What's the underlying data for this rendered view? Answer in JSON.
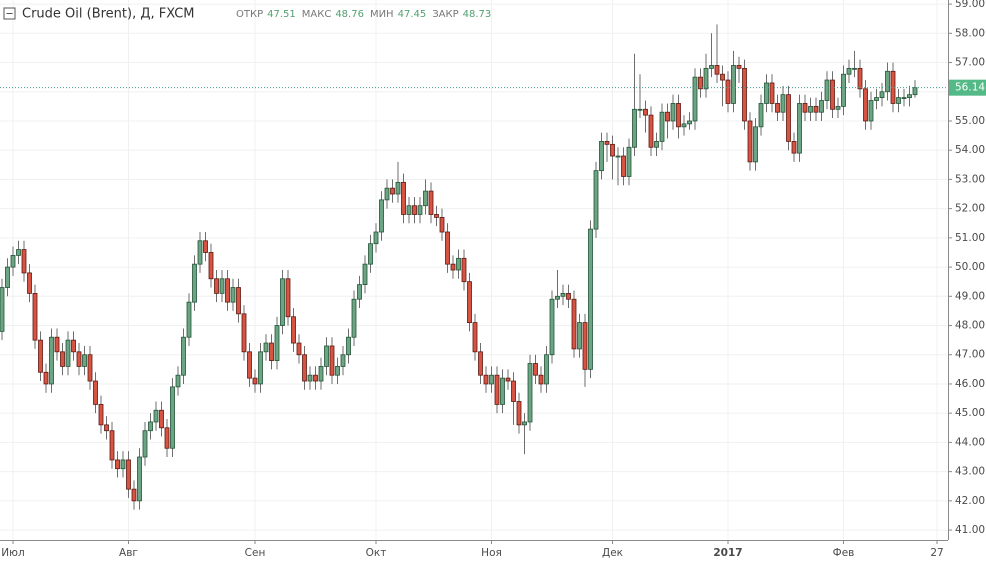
{
  "chart_data": {
    "type": "candlestick",
    "title": "Crude Oil (Brent), Д, FXCM",
    "legend": [
      {
        "label": "ОТКР",
        "value": 47.51
      },
      {
        "label": "МАКС",
        "value": 48.76
      },
      {
        "label": "МИН",
        "value": 47.45
      },
      {
        "label": "ЗАКР",
        "value": 48.73
      }
    ],
    "last_price": 56.14,
    "up_color": "#6ba583",
    "down_color": "#d75442",
    "grid": true,
    "ylim": [
      40.66,
      59.14
    ],
    "yticks": [
      {
        "value": 41,
        "label": "41.00"
      },
      {
        "value": 42,
        "label": "42.00"
      },
      {
        "value": 43,
        "label": "43.00"
      },
      {
        "value": 44,
        "label": "44.00"
      },
      {
        "value": 45,
        "label": "45.00"
      },
      {
        "value": 46,
        "label": "46.00"
      },
      {
        "value": 47,
        "label": "47.00"
      },
      {
        "value": 48,
        "label": "48.00"
      },
      {
        "value": 49,
        "label": "49.00"
      },
      {
        "value": 50,
        "label": "50.00"
      },
      {
        "value": 51,
        "label": "51.00"
      },
      {
        "value": 52,
        "label": "52.00"
      },
      {
        "value": 53,
        "label": "53.00"
      },
      {
        "value": 54,
        "label": "54.00"
      },
      {
        "value": 55,
        "label": "55.00"
      },
      {
        "value": 56,
        "label": "56.00"
      },
      {
        "value": 57,
        "label": "57.00"
      },
      {
        "value": 58,
        "label": "58.00"
      },
      {
        "value": 59,
        "label": "59.00"
      }
    ],
    "categories": [
      null,
      null,
      "Июл",
      null,
      null,
      null,
      null,
      null,
      null,
      null,
      null,
      null,
      null,
      null,
      null,
      null,
      null,
      null,
      null,
      null,
      null,
      null,
      null,
      "Авг",
      null,
      null,
      null,
      null,
      null,
      null,
      null,
      null,
      null,
      null,
      null,
      null,
      null,
      null,
      null,
      null,
      null,
      null,
      null,
      null,
      null,
      null,
      "Сен",
      null,
      null,
      null,
      null,
      null,
      null,
      null,
      null,
      null,
      null,
      null,
      null,
      null,
      null,
      null,
      null,
      null,
      null,
      null,
      null,
      null,
      "Окт",
      null,
      null,
      null,
      null,
      null,
      null,
      null,
      null,
      null,
      null,
      null,
      null,
      null,
      null,
      null,
      null,
      null,
      null,
      null,
      null,
      "Ноя",
      null,
      null,
      null,
      null,
      null,
      null,
      null,
      null,
      null,
      null,
      null,
      null,
      null,
      null,
      null,
      null,
      null,
      null,
      null,
      null,
      null,
      "Дек",
      null,
      null,
      null,
      null,
      null,
      null,
      null,
      null,
      null,
      null,
      null,
      null,
      null,
      null,
      null,
      null,
      null,
      null,
      null,
      null,
      "2017",
      null,
      null,
      null,
      null,
      null,
      null,
      null,
      null,
      null,
      null,
      null,
      null,
      null,
      null,
      null,
      null,
      null,
      null,
      null,
      null,
      "Фев",
      null,
      null,
      null,
      null,
      null,
      null,
      null,
      null,
      null,
      null,
      null,
      null,
      null,
      null,
      null,
      null,
      "27"
    ],
    "open": [
      47.8,
      49.3,
      50.0,
      50.4,
      50.6,
      49.8,
      49.1,
      47.5,
      46.4,
      46.0,
      47.6,
      47.1,
      46.6,
      47.5,
      47.1,
      46.6,
      47.0,
      46.1,
      45.3,
      44.6,
      44.4,
      43.4,
      43.1,
      43.4,
      42.4,
      42.0,
      43.5,
      44.4,
      44.7,
      45.1,
      44.5,
      43.8,
      45.9,
      46.3,
      47.6,
      48.8,
      50.1,
      50.9,
      50.5,
      49.6,
      49.1,
      49.6,
      48.8,
      49.3,
      48.4,
      47.1,
      46.2,
      46.0,
      47.1,
      47.4,
      46.8,
      48.0,
      49.6,
      48.3,
      47.4,
      47.0,
      46.1,
      46.3,
      46.1,
      46.6,
      47.3,
      46.3,
      46.6,
      47.0,
      47.6,
      48.9,
      49.4,
      50.1,
      50.8,
      51.2,
      52.3,
      52.7,
      52.5,
      52.9,
      51.8,
      52.1,
      51.8,
      52.1,
      52.6,
      51.8,
      51.7,
      51.2,
      50.1,
      49.9,
      50.3,
      49.5,
      48.1,
      47.1,
      46.3,
      46.0,
      46.3,
      45.3,
      46.2,
      46.1,
      45.4,
      44.6,
      44.7,
      46.7,
      46.3,
      46.0,
      47.0,
      48.9,
      49.0,
      49.1,
      48.9,
      47.2,
      48.1,
      46.5,
      51.3,
      53.3,
      54.3,
      54.2,
      53.8,
      53.8,
      53.1,
      54.1,
      55.4,
      55.4,
      55.2,
      54.1,
      54.3,
      55.3,
      55.0,
      55.6,
      54.8,
      54.9,
      55.0,
      56.5,
      56.1,
      56.8,
      56.9,
      56.6,
      56.4,
      55.6,
      56.9,
      56.8,
      55.0,
      53.6,
      54.8,
      55.6,
      56.3,
      55.6,
      55.3,
      55.9,
      54.3,
      53.9,
      55.6,
      55.3,
      55.5,
      55.3,
      55.7,
      56.4,
      55.4,
      55.5,
      56.6,
      56.8,
      56.8,
      56.1,
      55.0,
      55.7,
      55.8,
      56.0,
      56.7,
      55.6,
      55.8,
      55.8,
      55.9,
      null,
      null,
      null,
      null
    ],
    "high": [
      49.6,
      50.3,
      50.7,
      50.9,
      50.9,
      50.1,
      49.4,
      47.8,
      46.7,
      47.9,
      47.9,
      47.4,
      47.8,
      47.8,
      47.4,
      47.3,
      47.3,
      46.4,
      45.6,
      44.9,
      44.7,
      43.7,
      43.7,
      43.7,
      42.7,
      43.8,
      44.7,
      45.0,
      45.4,
      45.4,
      44.8,
      46.2,
      46.6,
      47.9,
      49.1,
      50.4,
      51.2,
      51.2,
      50.8,
      49.9,
      49.9,
      49.9,
      49.6,
      49.6,
      48.7,
      47.4,
      46.5,
      47.4,
      47.7,
      47.7,
      48.3,
      49.9,
      49.9,
      48.6,
      47.7,
      47.3,
      46.6,
      46.6,
      46.9,
      47.6,
      47.6,
      46.9,
      47.3,
      47.9,
      49.2,
      49.7,
      50.4,
      51.1,
      51.5,
      52.6,
      53.0,
      53.0,
      53.6,
      53.2,
      52.4,
      52.4,
      52.4,
      53.0,
      52.9,
      52.1,
      52.0,
      51.5,
      50.4,
      50.6,
      50.6,
      49.8,
      48.4,
      47.4,
      46.6,
      46.6,
      46.6,
      46.5,
      46.5,
      46.4,
      45.7,
      45.0,
      47.0,
      47.0,
      46.6,
      47.3,
      49.2,
      49.9,
      49.4,
      49.4,
      49.2,
      48.4,
      48.4,
      51.6,
      53.6,
      54.6,
      54.6,
      54.5,
      54.1,
      54.1,
      54.4,
      57.3,
      56.6,
      55.7,
      55.5,
      54.6,
      55.6,
      55.6,
      55.9,
      55.9,
      55.2,
      55.3,
      56.8,
      56.8,
      57.3,
      58.0,
      58.3,
      56.9,
      56.7,
      57.4,
      57.2,
      57.1,
      55.3,
      55.1,
      55.9,
      56.6,
      56.6,
      55.9,
      56.2,
      56.2,
      54.6,
      55.9,
      55.9,
      55.8,
      55.8,
      56.0,
      56.7,
      56.7,
      55.8,
      56.9,
      57.1,
      57.4,
      57.1,
      56.4,
      56.0,
      56.1,
      56.3,
      57.0,
      57.0,
      56.1,
      56.1,
      56.2,
      56.4,
      null,
      null,
      null,
      null
    ],
    "low": [
      47.5,
      49.0,
      49.7,
      50.1,
      49.5,
      48.8,
      47.2,
      46.1,
      45.7,
      45.7,
      46.8,
      46.3,
      46.3,
      46.8,
      46.3,
      46.3,
      45.8,
      45.0,
      44.3,
      44.1,
      43.1,
      42.8,
      42.8,
      42.1,
      41.7,
      41.7,
      43.2,
      44.1,
      44.4,
      44.2,
      43.5,
      43.5,
      45.6,
      46.0,
      47.3,
      48.5,
      49.8,
      50.2,
      49.3,
      48.8,
      48.8,
      48.5,
      48.5,
      48.1,
      46.8,
      45.9,
      45.7,
      45.7,
      46.8,
      46.5,
      46.5,
      47.7,
      48.0,
      47.1,
      46.7,
      45.8,
      45.8,
      45.8,
      45.8,
      46.3,
      46.0,
      46.0,
      46.3,
      46.7,
      47.3,
      48.6,
      49.1,
      49.8,
      50.5,
      50.9,
      52.0,
      52.2,
      52.2,
      51.5,
      51.5,
      51.5,
      51.5,
      51.8,
      51.5,
      51.4,
      50.9,
      49.8,
      49.6,
      49.6,
      49.2,
      47.8,
      46.8,
      46.0,
      45.7,
      45.7,
      45.0,
      45.0,
      45.8,
      44.6,
      44.3,
      43.6,
      44.4,
      46.0,
      45.7,
      45.7,
      46.7,
      48.6,
      48.7,
      48.6,
      46.9,
      46.9,
      45.9,
      46.2,
      51.0,
      53.0,
      53.6,
      53.0,
      52.8,
      52.8,
      52.8,
      53.8,
      55.1,
      54.6,
      53.8,
      53.8,
      54.0,
      54.4,
      54.7,
      54.4,
      54.5,
      54.7,
      54.7,
      55.8,
      55.8,
      56.5,
      56.3,
      55.5,
      55.3,
      55.3,
      56.3,
      54.7,
      53.3,
      53.3,
      54.5,
      55.3,
      55.3,
      55.0,
      55.0,
      54.0,
      53.6,
      53.6,
      55.0,
      55.0,
      55.0,
      55.0,
      55.4,
      55.1,
      55.1,
      55.2,
      56.3,
      56.5,
      55.8,
      54.7,
      54.7,
      55.4,
      55.5,
      55.7,
      55.3,
      55.3,
      55.5,
      55.5,
      55.8,
      null,
      null,
      null,
      null
    ],
    "close": [
      49.3,
      50.0,
      50.4,
      50.6,
      49.8,
      49.1,
      47.5,
      46.4,
      46.0,
      47.6,
      47.1,
      46.6,
      47.5,
      47.1,
      46.6,
      47.0,
      46.1,
      45.3,
      44.6,
      44.4,
      43.4,
      43.1,
      43.4,
      42.4,
      42.0,
      43.5,
      44.4,
      44.7,
      45.1,
      44.5,
      43.8,
      45.9,
      46.3,
      47.6,
      48.8,
      50.1,
      50.9,
      50.5,
      49.6,
      49.1,
      49.6,
      48.8,
      49.3,
      48.4,
      47.1,
      46.2,
      46.0,
      47.1,
      47.4,
      46.8,
      48.0,
      49.6,
      48.3,
      47.4,
      47.0,
      46.1,
      46.3,
      46.1,
      46.6,
      47.3,
      46.3,
      46.6,
      47.0,
      47.6,
      48.9,
      49.4,
      50.1,
      50.8,
      51.2,
      52.3,
      52.7,
      52.5,
      52.9,
      51.8,
      52.1,
      51.8,
      52.1,
      52.6,
      51.8,
      51.7,
      51.2,
      50.1,
      49.9,
      50.3,
      49.5,
      48.1,
      47.1,
      46.3,
      46.0,
      46.3,
      45.3,
      46.2,
      46.1,
      45.4,
      44.6,
      44.7,
      46.7,
      46.3,
      46.0,
      47.0,
      48.9,
      49.0,
      49.1,
      48.9,
      47.2,
      48.1,
      46.5,
      51.3,
      53.3,
      54.3,
      54.2,
      53.8,
      53.8,
      53.1,
      54.1,
      55.4,
      55.4,
      55.2,
      54.1,
      54.3,
      55.3,
      55.0,
      55.6,
      54.8,
      54.9,
      55.0,
      56.5,
      56.1,
      56.8,
      56.9,
      56.6,
      56.4,
      55.6,
      56.9,
      56.8,
      55.0,
      53.6,
      54.8,
      55.6,
      56.3,
      55.6,
      55.3,
      55.9,
      54.3,
      53.9,
      55.6,
      55.3,
      55.5,
      55.3,
      55.7,
      56.4,
      55.4,
      55.5,
      56.6,
      56.8,
      56.8,
      56.1,
      55.0,
      55.7,
      55.8,
      56.0,
      56.7,
      55.6,
      55.8,
      55.8,
      55.9,
      56.14,
      null,
      null,
      null,
      null
    ]
  }
}
